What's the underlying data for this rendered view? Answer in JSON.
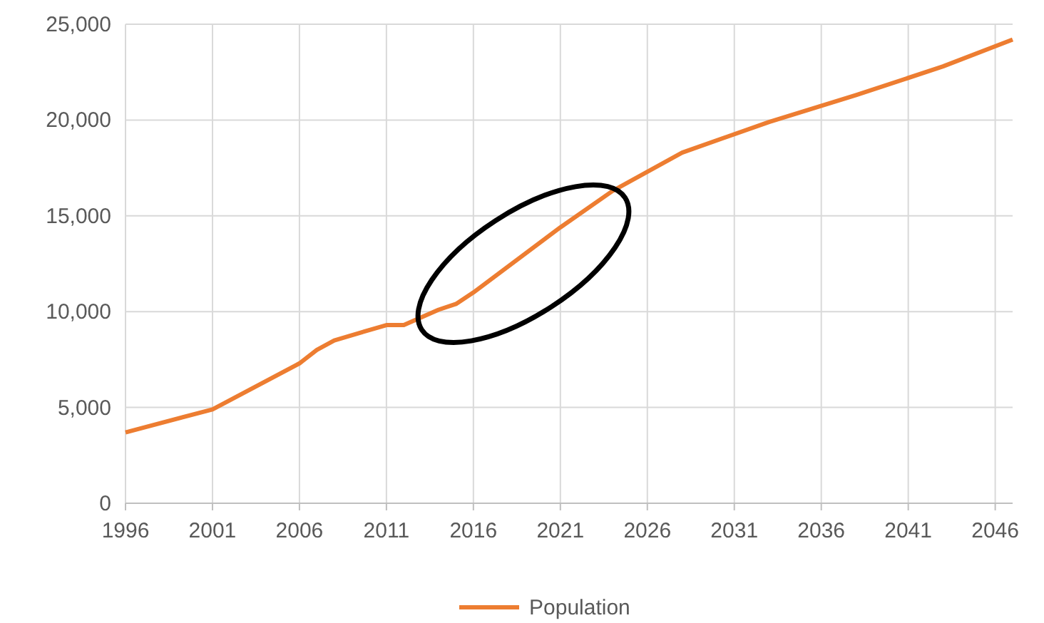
{
  "chart_data": {
    "type": "line",
    "x": [
      1996,
      2001,
      2006,
      2007,
      2008,
      2011,
      2012,
      2014,
      2015,
      2016,
      2021,
      2024,
      2028,
      2033,
      2038,
      2043,
      2047
    ],
    "series": [
      {
        "name": "Population",
        "color": "#ed7d31",
        "values": [
          3700,
          4900,
          7300,
          8000,
          8500,
          9300,
          9300,
          10100,
          10400,
          11000,
          14400,
          16300,
          18300,
          19900,
          21300,
          22800,
          24200
        ]
      }
    ],
    "xlim": [
      1996,
      2047
    ],
    "xticks": [
      1996,
      2001,
      2006,
      2011,
      2016,
      2021,
      2026,
      2031,
      2036,
      2041,
      2046
    ],
    "ylim": [
      0,
      25000
    ],
    "yticks": [
      {
        "value": 0,
        "label": "0"
      },
      {
        "value": 5000,
        "label": "5,000"
      },
      {
        "value": 10000,
        "label": "10,000"
      },
      {
        "value": 15000,
        "label": "15,000"
      },
      {
        "value": 20000,
        "label": "20,000"
      },
      {
        "value": 25000,
        "label": "25,000"
      }
    ],
    "grid": true,
    "legend": "bottom",
    "marker": "none",
    "line_style": "solid"
  }
}
